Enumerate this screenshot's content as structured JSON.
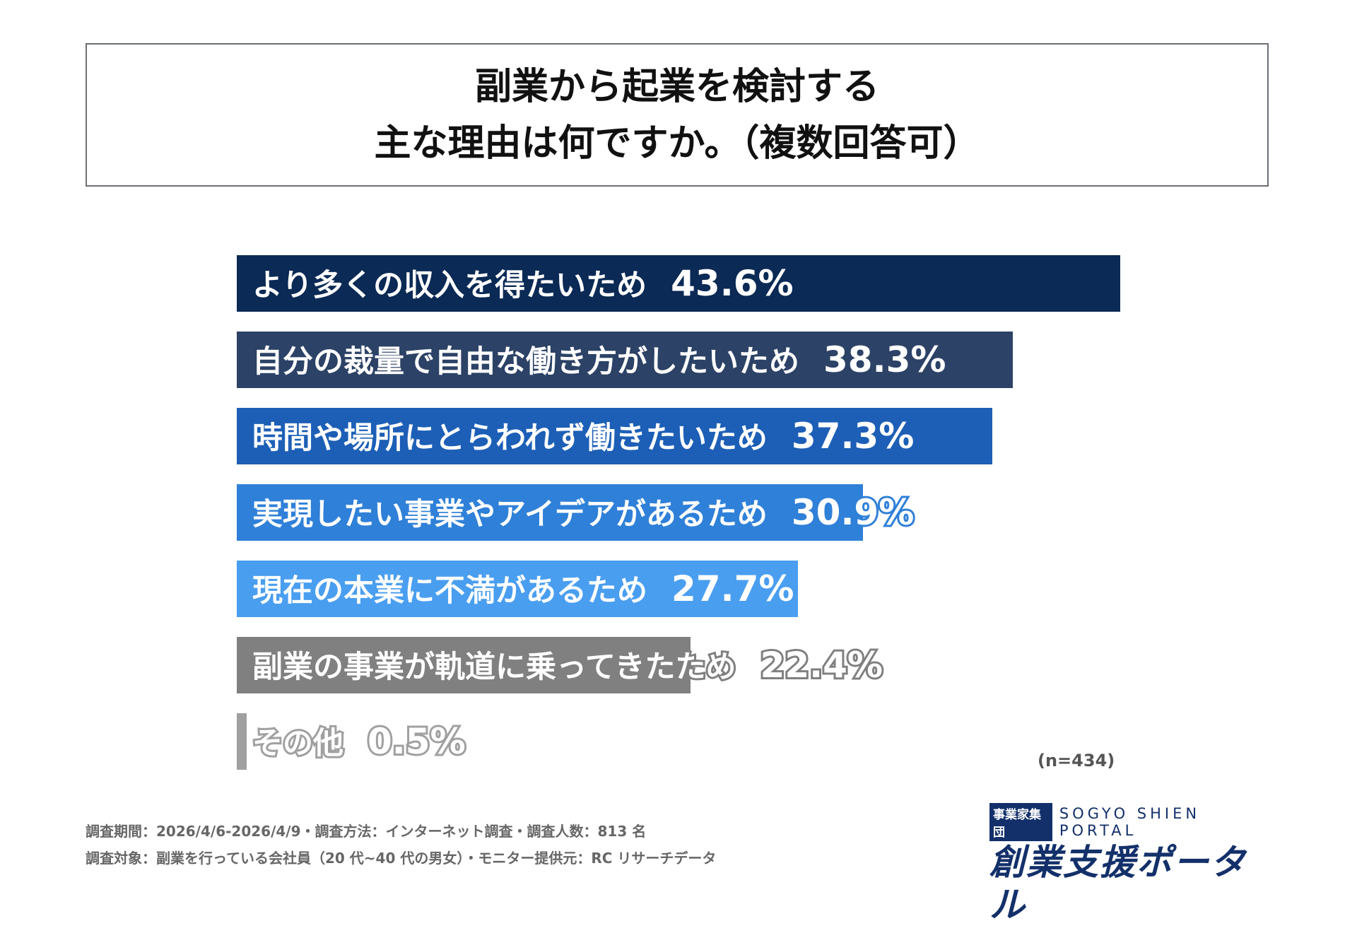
{
  "title": {
    "line1": "副業から起業を検討する",
    "line2": "主な理由は何ですか。（複数回答可）"
  },
  "chart_data": {
    "type": "bar",
    "orientation": "horizontal",
    "title": "副業から起業を検討する 主な理由は何ですか。（複数回答可）",
    "categories": [
      "より多くの収入を得たいため",
      "自分の裁量で自由な働き方がしたいため",
      "時間や場所にとらわれず働きたいため",
      "実現したい事業やアイデアがあるため",
      "現在の本業に不満があるため",
      "副業の事業が軌道に乗ってきたため",
      "その他"
    ],
    "values": [
      43.6,
      38.3,
      37.3,
      30.9,
      27.7,
      22.4,
      0.5
    ],
    "value_labels": [
      "43.6%",
      "38.3%",
      "37.3%",
      "30.9%",
      "27.7%",
      "22.4%",
      "0.5%"
    ],
    "colors": [
      "#0b2a55",
      "#2c4266",
      "#1d5fb6",
      "#2f80d8",
      "#4a9ef0",
      "#808080",
      "#a0a0a0"
    ],
    "unit": "%",
    "grid": false
  },
  "sample_size": "(n=434)",
  "footer": {
    "line1": "調査期間：2026/4/6-2026/4/9・調査方法：インターネット調査・調査人数：813 名",
    "line2": "調査対象：副業を行っている会社員（20 代~40 代の男女）・モニター提供元：RC リサーチデータ"
  },
  "logo": {
    "badge": "事業家集団",
    "english": "SOGYO SHIEN PORTAL",
    "japanese": "創業支援ポータル",
    "color": "#13306a"
  }
}
